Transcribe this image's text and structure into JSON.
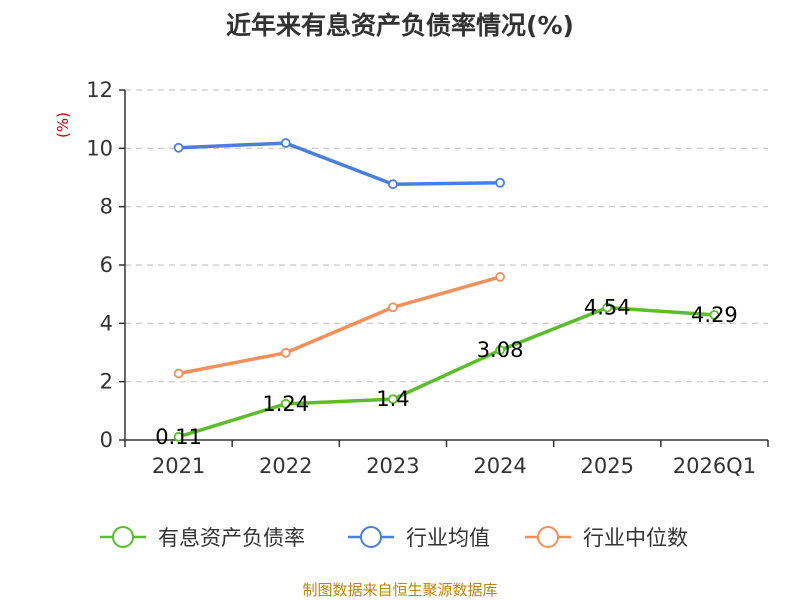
{
  "chart_data": {
    "type": "line",
    "title": "近年来有息资产负债率情况(%)",
    "ylabel": "(%)",
    "categories": [
      "2021",
      "2022",
      "2023",
      "2024",
      "2025",
      "2026Q1"
    ],
    "ylim": [
      0,
      12
    ],
    "yticks": [
      "0",
      "2",
      "4",
      "6",
      "8",
      "10",
      "12"
    ],
    "grid": "horizontal-dashed",
    "legend_position": "bottom",
    "series": [
      {
        "name": "有息资产负债率",
        "color": "#5bbd2b",
        "values": [
          0.11,
          1.24,
          1.4,
          3.08,
          4.54,
          4.29
        ],
        "labels": [
          "0.11",
          "1.24",
          "1.4",
          "3.08",
          "4.54",
          "4.29"
        ]
      },
      {
        "name": "行业均值",
        "color": "#4a7fd9",
        "values": [
          10.02,
          10.18,
          8.77,
          8.82,
          null,
          null
        ],
        "labels": []
      },
      {
        "name": "行业中位数",
        "color": "#f5905b",
        "values": [
          2.28,
          2.99,
          4.55,
          5.59,
          null,
          null
        ],
        "labels": []
      }
    ],
    "source": "制图数据来自恒生聚源数据库"
  }
}
